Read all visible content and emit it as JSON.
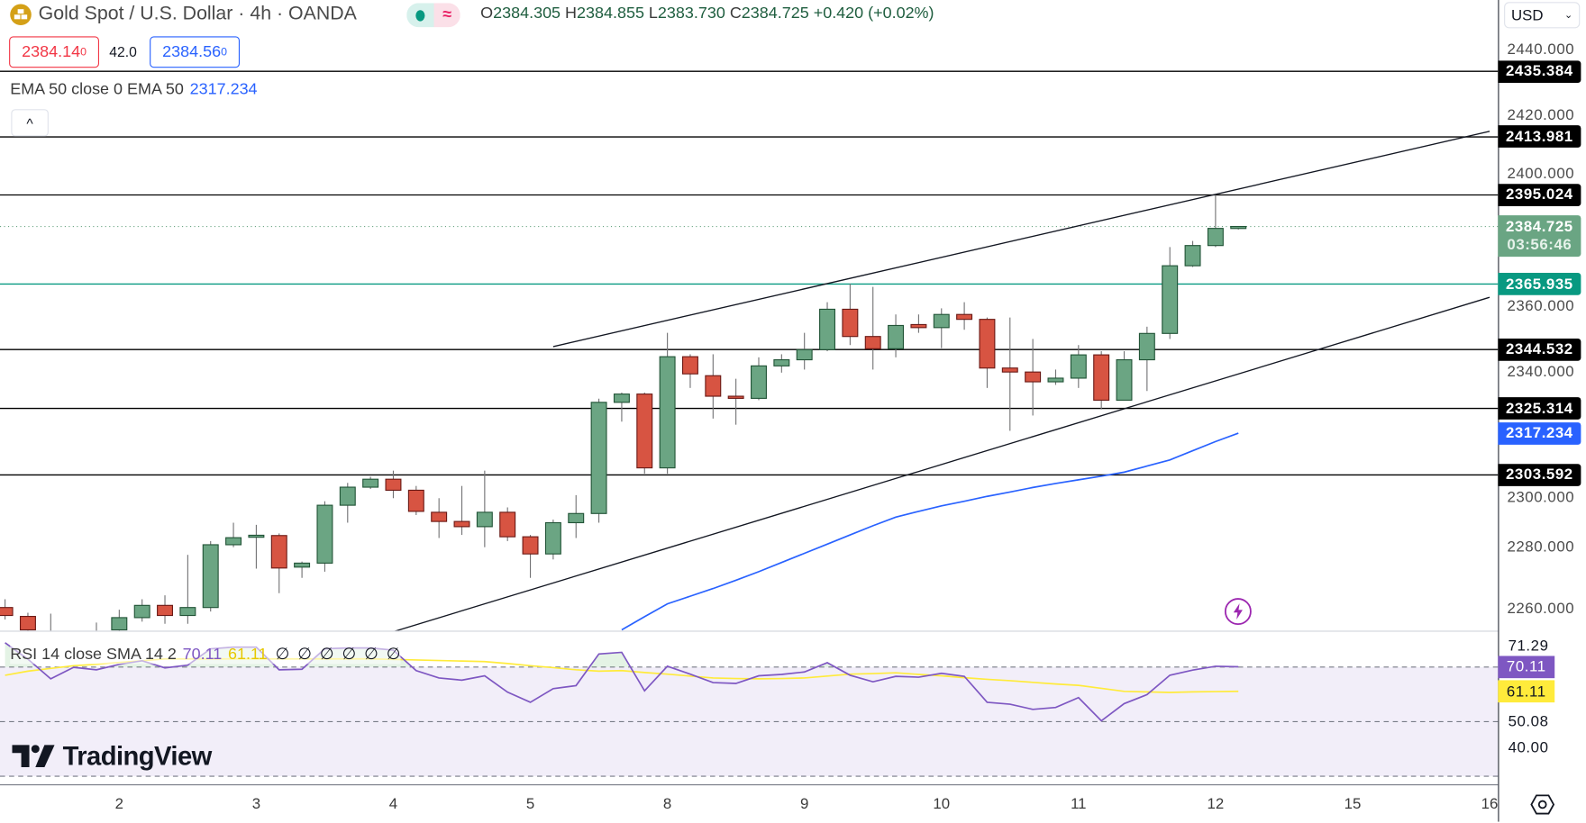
{
  "header": {
    "title": "Gold Spot / U.S. Dollar · 4h · OANDA",
    "symbol_icon": "gold-bars-icon",
    "status": {
      "market_dot_color": "#089981",
      "delay_icon": "≈"
    },
    "ohlc": {
      "o_label": "O",
      "o": "2384.305",
      "h_label": "H",
      "h": "2384.855",
      "l_label": "L",
      "l": "2383.730",
      "c_label": "C",
      "c": "2384.725",
      "change": "+0.420 (+0.02%)"
    },
    "bid": {
      "main": "2384.14",
      "sup": "0"
    },
    "spread": "42.0",
    "ask": {
      "main": "2384.56",
      "sup": "0"
    }
  },
  "ema_legend": {
    "label": "EMA 50 close 0 EMA 50",
    "value": "2317.234"
  },
  "collapse_icon": "^",
  "currency": {
    "selected": "USD"
  },
  "price_axis": {
    "ticks": [
      "2440.000",
      "2420.000",
      "2400.000",
      "2360.000",
      "2340.000",
      "2300.000",
      "2280.000",
      "2260.000"
    ]
  },
  "levels": [
    {
      "price": "2435.384",
      "color": "#000000"
    },
    {
      "price": "2413.981",
      "color": "#000000"
    },
    {
      "price": "2395.024",
      "color": "#000000"
    },
    {
      "price": "2365.935",
      "color": "#089981"
    },
    {
      "price": "2344.532",
      "color": "#000000"
    },
    {
      "price": "2325.314",
      "color": "#000000"
    },
    {
      "price": "2303.592",
      "color": "#000000"
    }
  ],
  "current_price": {
    "price": "2384.725",
    "countdown": "03:56:46",
    "color": "#6aa583"
  },
  "ema_marker": {
    "price": "2317.234",
    "color": "#2962ff"
  },
  "rsi": {
    "legend": "RSI 14 close SMA 14 2",
    "value": "70.11",
    "sma_value": "61.11",
    "empty_values": [
      "∅",
      "∅",
      "∅",
      "∅",
      "∅",
      "∅"
    ],
    "axis_ticks": [
      "71.29",
      "50.08",
      "40.00"
    ],
    "rsi_color": "#7e57c2",
    "sma_color": "#ffeb3b",
    "bands": [
      70,
      50,
      30
    ]
  },
  "time_axis": {
    "ticks": [
      {
        "label": "2",
        "bar": 6
      },
      {
        "label": "3",
        "bar": 12
      },
      {
        "label": "4",
        "bar": 18
      },
      {
        "label": "5",
        "bar": 24
      },
      {
        "label": "8",
        "bar": 30
      },
      {
        "label": "9",
        "bar": 36
      },
      {
        "label": "10",
        "bar": 42
      },
      {
        "label": "11",
        "bar": 48
      },
      {
        "label": "12",
        "bar": 54
      },
      {
        "label": "15",
        "bar": 60
      },
      {
        "label": "16",
        "bar": 66
      }
    ]
  },
  "branding": "TradingView",
  "chart_data": {
    "type": "candlestick",
    "timeframe": "4h",
    "colors": {
      "up": "#6ba583",
      "down": "#d75442",
      "ema": "#2962ff"
    },
    "ylim": [
      2250,
      2445
    ],
    "candles": [
      {
        "o": 2260.3,
        "h": 2263.0,
        "l": 2256.4,
        "c": 2257.7
      },
      {
        "o": 2257.4,
        "h": 2258.6,
        "l": 2248.0,
        "c": 2253.0
      },
      {
        "o": 2248.0,
        "h": 2258.3,
        "l": 2245.0,
        "c": 2251.0
      },
      {
        "o": 2246.0,
        "h": 2251.0,
        "l": 2240.0,
        "c": 2249.0
      },
      {
        "o": 2249.0,
        "h": 2255.4,
        "l": 2244.0,
        "c": 2251.0
      },
      {
        "o": 2253.0,
        "h": 2259.6,
        "l": 2250.0,
        "c": 2257.0
      },
      {
        "o": 2257.0,
        "h": 2263.0,
        "l": 2255.7,
        "c": 2261.0
      },
      {
        "o": 2261.0,
        "h": 2264.3,
        "l": 2255.0,
        "c": 2257.7
      },
      {
        "o": 2257.7,
        "h": 2277.5,
        "l": 2255.0,
        "c": 2260.3
      },
      {
        "o": 2260.3,
        "h": 2282.0,
        "l": 2259.0,
        "c": 2280.8
      },
      {
        "o": 2280.8,
        "h": 2288.0,
        "l": 2280.0,
        "c": 2283.1
      },
      {
        "o": 2283.5,
        "h": 2287.3,
        "l": 2273.0,
        "c": 2283.9
      },
      {
        "o": 2283.8,
        "h": 2284.5,
        "l": 2265.0,
        "c": 2273.2
      },
      {
        "o": 2273.5,
        "h": 2275.3,
        "l": 2270.0,
        "c": 2274.8
      },
      {
        "o": 2274.8,
        "h": 2295.0,
        "l": 2272.0,
        "c": 2293.7
      },
      {
        "o": 2293.7,
        "h": 2301.0,
        "l": 2288.0,
        "c": 2299.6
      },
      {
        "o": 2299.6,
        "h": 2303.0,
        "l": 2299.0,
        "c": 2302.2
      },
      {
        "o": 2302.2,
        "h": 2305.0,
        "l": 2296.0,
        "c": 2298.6
      },
      {
        "o": 2298.6,
        "h": 2300.0,
        "l": 2290.5,
        "c": 2291.7
      },
      {
        "o": 2291.4,
        "h": 2296.0,
        "l": 2283.0,
        "c": 2288.4
      },
      {
        "o": 2288.4,
        "h": 2300.0,
        "l": 2284.0,
        "c": 2286.7
      },
      {
        "o": 2286.7,
        "h": 2305.0,
        "l": 2280.0,
        "c": 2291.4
      },
      {
        "o": 2291.4,
        "h": 2293.0,
        "l": 2282.0,
        "c": 2283.4
      },
      {
        "o": 2283.4,
        "h": 2284.0,
        "l": 2270.0,
        "c": 2277.8
      },
      {
        "o": 2277.8,
        "h": 2289.0,
        "l": 2276.0,
        "c": 2288.0
      },
      {
        "o": 2288.0,
        "h": 2297.0,
        "l": 2283.0,
        "c": 2291.0
      },
      {
        "o": 2291.0,
        "h": 2328.5,
        "l": 2288.0,
        "c": 2327.3
      },
      {
        "o": 2327.3,
        "h": 2330.5,
        "l": 2321.0,
        "c": 2330.0,
        "ema": 2253.0
      },
      {
        "o": 2330.0,
        "h": 2330.5,
        "l": 2304.0,
        "c": 2305.9,
        "ema": 2257.3
      },
      {
        "o": 2305.9,
        "h": 2350.0,
        "l": 2304.0,
        "c": 2342.2,
        "ema": 2261.5
      },
      {
        "o": 2342.2,
        "h": 2343.0,
        "l": 2332.0,
        "c": 2336.6,
        "ema": 2264.0
      },
      {
        "o": 2336.0,
        "h": 2343.0,
        "l": 2322.0,
        "c": 2329.3,
        "ema": 2266.5
      },
      {
        "o": 2329.3,
        "h": 2335.0,
        "l": 2320.0,
        "c": 2328.6,
        "ema": 2269.2
      },
      {
        "o": 2328.6,
        "h": 2342.0,
        "l": 2328.0,
        "c": 2339.2,
        "ema": 2272.0
      },
      {
        "o": 2339.2,
        "h": 2343.0,
        "l": 2337.0,
        "c": 2341.2,
        "ema": 2275.0
      },
      {
        "o": 2341.2,
        "h": 2350.0,
        "l": 2338.0,
        "c": 2344.5,
        "ema": 2278.0
      },
      {
        "o": 2344.5,
        "h": 2360.0,
        "l": 2344.0,
        "c": 2357.7,
        "ema": 2281.0
      },
      {
        "o": 2357.7,
        "h": 2366.0,
        "l": 2346.0,
        "c": 2348.8,
        "ema": 2284.0
      },
      {
        "o": 2348.8,
        "h": 2365.0,
        "l": 2338.0,
        "c": 2344.8,
        "ema": 2287.0
      },
      {
        "o": 2344.8,
        "h": 2356.0,
        "l": 2342.0,
        "c": 2352.4,
        "ema": 2289.8
      },
      {
        "o": 2352.7,
        "h": 2356.0,
        "l": 2350.0,
        "c": 2351.7,
        "ema": 2291.7
      },
      {
        "o": 2351.7,
        "h": 2358.0,
        "l": 2345.0,
        "c": 2356.0,
        "ema": 2293.5
      },
      {
        "o": 2356.0,
        "h": 2360.0,
        "l": 2351.0,
        "c": 2354.4,
        "ema": 2295.0
      },
      {
        "o": 2354.4,
        "h": 2355.0,
        "l": 2332.0,
        "c": 2338.5,
        "ema": 2296.6
      },
      {
        "o": 2338.5,
        "h": 2355.0,
        "l": 2318.0,
        "c": 2337.2,
        "ema": 2298.0
      },
      {
        "o": 2337.2,
        "h": 2348.0,
        "l": 2323.0,
        "c": 2334.0,
        "ema": 2299.5
      },
      {
        "o": 2334.0,
        "h": 2338.0,
        "l": 2333.0,
        "c": 2335.2,
        "ema": 2300.8
      },
      {
        "o": 2335.2,
        "h": 2346.0,
        "l": 2332.0,
        "c": 2342.8,
        "ema": 2302.0
      },
      {
        "o": 2342.8,
        "h": 2344.0,
        "l": 2325.0,
        "c": 2328.0,
        "ema": 2303.2
      },
      {
        "o": 2328.0,
        "h": 2344.0,
        "l": 2328.0,
        "c": 2341.2,
        "ema": 2304.5
      },
      {
        "o": 2341.2,
        "h": 2352.0,
        "l": 2331.0,
        "c": 2349.8,
        "ema": 2306.5
      },
      {
        "o": 2349.8,
        "h": 2378.0,
        "l": 2348.0,
        "c": 2371.9,
        "ema": 2308.5
      },
      {
        "o": 2371.9,
        "h": 2380.0,
        "l": 2371.5,
        "c": 2378.5,
        "ema": 2311.5
      },
      {
        "o": 2378.5,
        "h": 2395.0,
        "l": 2378.0,
        "c": 2384.1,
        "ema": 2314.5
      },
      {
        "o": 2384.305,
        "h": 2384.855,
        "l": 2383.73,
        "c": 2384.725,
        "ema": 2317.234
      }
    ],
    "trendlines": [
      {
        "from": {
          "bar": 25,
          "price": 2345.5
        },
        "to": {
          "bar": 66,
          "price": 2415.8
        }
      },
      {
        "from": {
          "bar": 18,
          "price": 2252.4
        },
        "to": {
          "bar": 66,
          "price": 2361.6
        }
      }
    ],
    "rsi_series": [
      78.9,
      72.9,
      65.7,
      69.9,
      69.0,
      71.0,
      72.3,
      69.7,
      70.7,
      76.7,
      77.3,
      77.3,
      69.0,
      69.2,
      76.7,
      77.0,
      77.0,
      76.2,
      68.7,
      66.0,
      65.2,
      66.8,
      60.8,
      57.1,
      62.1,
      63.2,
      74.8,
      75.4,
      61.3,
      70.3,
      67.4,
      64.3,
      64.0,
      66.8,
      67.3,
      68.2,
      71.6,
      67.0,
      64.6,
      66.6,
      66.3,
      67.7,
      66.6,
      57.1,
      56.4,
      54.5,
      55.2,
      58.8,
      50.3,
      56.6,
      59.9,
      67.0,
      68.9,
      70.3,
      70.11
    ],
    "rsi_sma_series": [
      67.0,
      68.5,
      69.5,
      70.5,
      71.0,
      71.7,
      72.3,
      73.0,
      73.0,
      73.0,
      73.0,
      73.0,
      73.0,
      73.0,
      73.0,
      73.0,
      73.0,
      72.8,
      72.6,
      72.4,
      72.2,
      72.0,
      71.3,
      70.5,
      69.8,
      69.0,
      68.5,
      68.7,
      68.0,
      67.4,
      66.7,
      66.0,
      65.8,
      65.7,
      65.8,
      66.0,
      66.7,
      67.4,
      67.6,
      67.9,
      67.3,
      66.8,
      66.1,
      65.5,
      65.0,
      64.4,
      63.8,
      63.3,
      62.2,
      61.1,
      60.9,
      60.7,
      60.9,
      61.0,
      61.11
    ]
  }
}
